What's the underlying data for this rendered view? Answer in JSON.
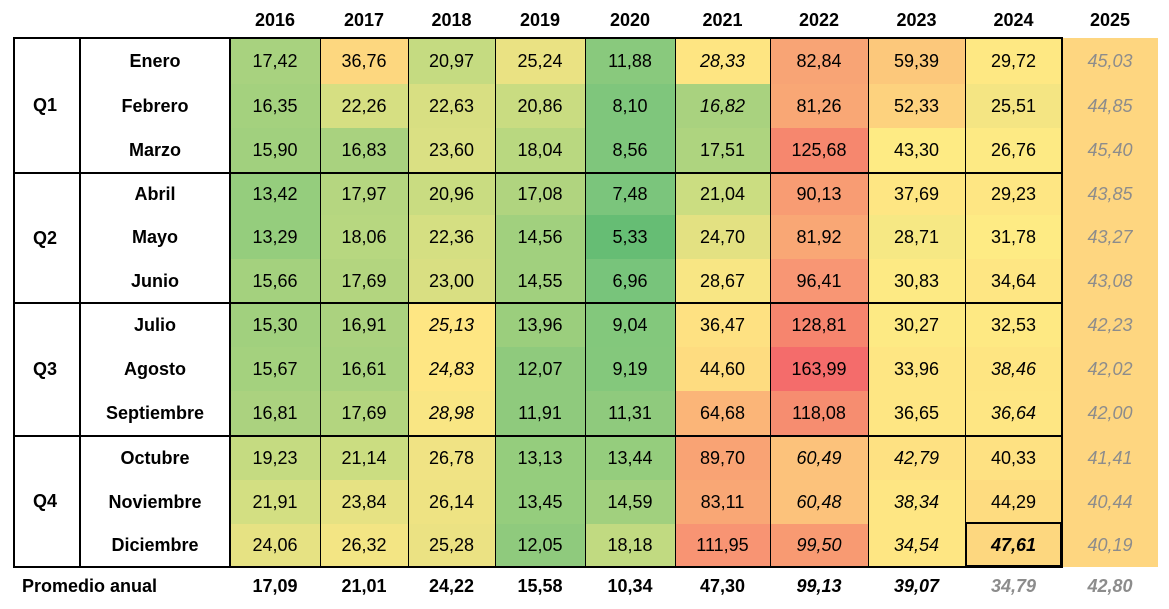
{
  "header": {
    "years": [
      "2016",
      "2017",
      "2018",
      "2019",
      "2020",
      "2021",
      "2022",
      "2023",
      "2024",
      "2025"
    ]
  },
  "quarters": [
    {
      "label": "Q1",
      "months": [
        "Enero",
        "Febrero",
        "Marzo"
      ]
    },
    {
      "label": "Q2",
      "months": [
        "Abril",
        "Mayo",
        "Junio"
      ]
    },
    {
      "label": "Q3",
      "months": [
        "Julio",
        "Agosto",
        "Septiembre"
      ]
    },
    {
      "label": "Q4",
      "months": [
        "Octubre",
        "Noviembre",
        "Diciembre"
      ]
    }
  ],
  "rows": [
    [
      "17,42",
      "36,76",
      "20,97",
      "25,24",
      "11,88",
      "28,33",
      "82,84",
      "59,39",
      "29,72",
      "45,03"
    ],
    [
      "16,35",
      "22,26",
      "22,63",
      "20,86",
      "8,10",
      "16,82",
      "81,26",
      "52,33",
      "25,51",
      "44,85"
    ],
    [
      "15,90",
      "16,83",
      "23,60",
      "18,04",
      "8,56",
      "17,51",
      "125,68",
      "43,30",
      "26,76",
      "45,40"
    ],
    [
      "13,42",
      "17,97",
      "20,96",
      "17,08",
      "7,48",
      "21,04",
      "90,13",
      "37,69",
      "29,23",
      "43,85"
    ],
    [
      "13,29",
      "18,06",
      "22,36",
      "14,56",
      "5,33",
      "24,70",
      "81,92",
      "28,71",
      "31,78",
      "43,27"
    ],
    [
      "15,66",
      "17,69",
      "23,00",
      "14,55",
      "6,96",
      "28,67",
      "96,41",
      "30,83",
      "34,64",
      "43,08"
    ],
    [
      "15,30",
      "16,91",
      "25,13",
      "13,96",
      "9,04",
      "36,47",
      "128,81",
      "30,27",
      "32,53",
      "42,23"
    ],
    [
      "15,67",
      "16,61",
      "24,83",
      "12,07",
      "9,19",
      "44,60",
      "163,99",
      "33,96",
      "38,46",
      "42,02"
    ],
    [
      "16,81",
      "17,69",
      "28,98",
      "11,91",
      "11,31",
      "64,68",
      "118,08",
      "36,65",
      "36,64",
      "42,00"
    ],
    [
      "19,23",
      "21,14",
      "26,78",
      "13,13",
      "13,44",
      "89,70",
      "60,49",
      "42,79",
      "40,33",
      "41,41"
    ],
    [
      "21,91",
      "23,84",
      "26,14",
      "13,45",
      "14,59",
      "83,11",
      "60,48",
      "38,34",
      "44,29",
      "40,44"
    ],
    [
      "24,06",
      "26,32",
      "25,28",
      "12,05",
      "18,18",
      "111,95",
      "99,50",
      "34,54",
      "47,61",
      "40,19"
    ]
  ],
  "colors": [
    [
      "#a8d27f",
      "#fdd77f",
      "#c5db81",
      "#eae283",
      "#89c97d",
      "#fee582",
      "#f8a475",
      "#fcc87b",
      "#fee883",
      "#fed680"
    ],
    [
      "#a4d17e",
      "#d6df82",
      "#d8df82",
      "#c9dc81",
      "#7fc67c",
      "#a9d27f",
      "#f9a775",
      "#fdd27e",
      "#f4e583",
      "#fed680"
    ],
    [
      "#a1d07e",
      "#a9d27f",
      "#dae083",
      "#b9d880",
      "#7fc67c",
      "#aed47f",
      "#f6876e",
      "#feeb84",
      "#fdea84",
      "#fed680"
    ],
    [
      "#95cd7d",
      "#b5d680",
      "#c9dc81",
      "#b0d47f",
      "#7bc57c",
      "#cbdd81",
      "#f89c73",
      "#fee683",
      "#fee683",
      "#fed680"
    ],
    [
      "#95cd7d",
      "#b7d780",
      "#d5df82",
      "#a1d07e",
      "#66bd74",
      "#e3e182",
      "#f9a775",
      "#f6e884",
      "#feeb84",
      "#fed680"
    ],
    [
      "#a4d17e",
      "#b3d57f",
      "#d9df82",
      "#a1d07e",
      "#78c47b",
      "#f8e684",
      "#f89674",
      "#fdea84",
      "#fee683",
      "#fed680"
    ],
    [
      "#a1d07e",
      "#abd27f",
      "#fee683",
      "#9bce7d",
      "#83c87c",
      "#fee182",
      "#f6856e",
      "#fdea84",
      "#fee983",
      "#fed680"
    ],
    [
      "#a4d17e",
      "#a8d27f",
      "#fee683",
      "#8fca7d",
      "#84c87c",
      "#fedc80",
      "#f46c6b",
      "#fee683",
      "#fee582",
      "#fed680"
    ],
    [
      "#abd27f",
      "#b3d57f",
      "#f9e684",
      "#8fca7d",
      "#8fca7d",
      "#fbb578",
      "#f68d70",
      "#fee683",
      "#fee683",
      "#fed680"
    ],
    [
      "#c5db81",
      "#cbdd81",
      "#f0e384",
      "#95cd7d",
      "#95cd7d",
      "#f9a374",
      "#fcc27b",
      "#fee182",
      "#fee182",
      "#fed680"
    ],
    [
      "#d3df82",
      "#e6e283",
      "#eee383",
      "#95cd7d",
      "#a1d07e",
      "#f9a775",
      "#fcc27b",
      "#fee683",
      "#fedc80",
      "#fed680"
    ],
    [
      "#e6e283",
      "#f3e584",
      "#ebe283",
      "#8fca7d",
      "#c1da81",
      "#f89473",
      "#f89a72",
      "#fee683",
      "#fdd77f",
      "#fed680"
    ]
  ],
  "footer": {
    "label": "Promedio anual",
    "values": [
      "17,09",
      "21,01",
      "24,22",
      "15,58",
      "10,34",
      "47,30",
      "99,13",
      "39,07",
      "34,79",
      "42,80"
    ]
  }
}
